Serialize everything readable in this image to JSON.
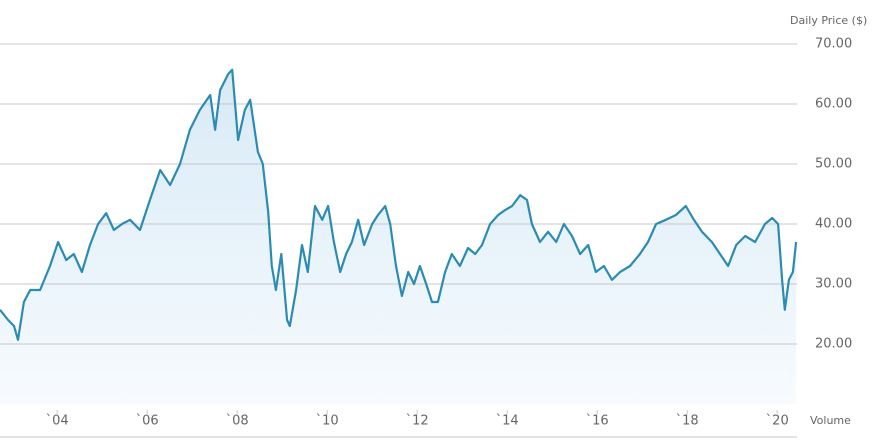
{
  "chart_data": {
    "type": "area-line",
    "y_axis_title": "Daily Price ($)",
    "x_axis_title": "Volume",
    "color": "#2b8cb3",
    "fill": "#e6f1f9",
    "grid": true,
    "xlim": [
      2002.73,
      2020.44
    ],
    "ylim": [
      10,
      75
    ],
    "yticks": [
      {
        "value": 20,
        "label": "20.00"
      },
      {
        "value": 30,
        "label": "30.00"
      },
      {
        "value": 40,
        "label": "40.00"
      },
      {
        "value": 50,
        "label": "50.00"
      },
      {
        "value": 60,
        "label": "60.00"
      },
      {
        "value": 70,
        "label": "70.00"
      }
    ],
    "xticks": [
      {
        "value": 2004,
        "label": "`04"
      },
      {
        "value": 2006,
        "label": "`06"
      },
      {
        "value": 2008,
        "label": "`08"
      },
      {
        "value": 2010,
        "label": "`10"
      },
      {
        "value": 2012,
        "label": "`12"
      },
      {
        "value": 2014,
        "label": "`14"
      },
      {
        "value": 2016,
        "label": "`16"
      },
      {
        "value": 2018,
        "label": "`18"
      },
      {
        "value": 2020,
        "label": "`20"
      }
    ],
    "x": [
      2002.73,
      2002.91,
      2003.04,
      2003.13,
      2003.26,
      2003.4,
      2003.62,
      2003.84,
      2004.02,
      2004.2,
      2004.37,
      2004.55,
      2004.73,
      2004.91,
      2005.09,
      2005.26,
      2005.44,
      2005.62,
      2005.84,
      2006.06,
      2006.29,
      2006.51,
      2006.73,
      2006.95,
      2007.17,
      2007.4,
      2007.51,
      2007.62,
      2007.8,
      2007.89,
      2008.02,
      2008.17,
      2008.29,
      2008.46,
      2008.57,
      2008.69,
      2008.77,
      2008.86,
      2008.98,
      2009.11,
      2009.17,
      2009.31,
      2009.44,
      2009.57,
      2009.73,
      2009.89,
      2010.02,
      2010.15,
      2010.29,
      2010.42,
      2010.55,
      2010.69,
      2010.82,
      2011.0,
      2011.13,
      2011.29,
      2011.4,
      2011.53,
      2011.66,
      2011.8,
      2011.93,
      2012.06,
      2012.2,
      2012.33,
      2012.46,
      2012.62,
      2012.77,
      2012.95,
      2013.13,
      2013.29,
      2013.44,
      2013.62,
      2013.8,
      2013.95,
      2014.11,
      2014.29,
      2014.44,
      2014.55,
      2014.73,
      2014.91,
      2015.09,
      2015.26,
      2015.44,
      2015.62,
      2015.8,
      2015.97,
      2016.15,
      2016.33,
      2016.51,
      2016.73,
      2016.95,
      2017.13,
      2017.31,
      2017.53,
      2017.75,
      2017.97,
      2018.15,
      2018.33,
      2018.55,
      2018.73,
      2018.91,
      2019.09,
      2019.29,
      2019.51,
      2019.73,
      2019.89,
      2020.02,
      2020.11,
      2020.17,
      2020.26,
      2020.35,
      2020.42
    ],
    "values": [
      25.7,
      24,
      23,
      20.7,
      27,
      29,
      29,
      33,
      37,
      34,
      35,
      32,
      36.5,
      40,
      41.8,
      39,
      40,
      40.7,
      39,
      44,
      49,
      46.5,
      50,
      55.7,
      59,
      61.5,
      55.7,
      62.3,
      65,
      65.7,
      54,
      59,
      60.7,
      52,
      50,
      42,
      33,
      29,
      35,
      24,
      23,
      29,
      36.5,
      32,
      43,
      40.7,
      43,
      37,
      32,
      35,
      37,
      40.7,
      36.5,
      40,
      41.5,
      43,
      40,
      33,
      28,
      32,
      30,
      33,
      30,
      27,
      27,
      32,
      35,
      33,
      36,
      35,
      36.5,
      40,
      41.5,
      42.3,
      43,
      44.8,
      44,
      40,
      37,
      38.7,
      37,
      40,
      38,
      35,
      36.5,
      32,
      33,
      30.7,
      32,
      33,
      35,
      37,
      40,
      40.7,
      41.5,
      43,
      40.7,
      38.7,
      37,
      35,
      33,
      36.5,
      38,
      37,
      40,
      41,
      40,
      30.7,
      25.7,
      30.7,
      32,
      37
    ]
  }
}
